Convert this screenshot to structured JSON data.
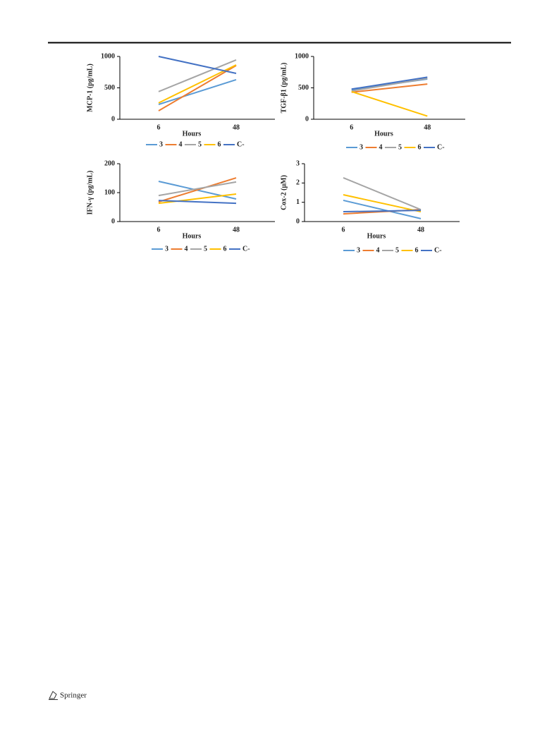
{
  "chart_data": [
    {
      "type": "line",
      "y_label": "MCP-1 (pg/mL)",
      "x_label": "Hours",
      "categories": [
        "6",
        "48"
      ],
      "ylim": [
        0,
        1000
      ],
      "yticks": [
        0,
        500,
        1000
      ],
      "series": [
        {
          "name": "3",
          "color": "#5b9bd5",
          "values": [
            236,
            630
          ]
        },
        {
          "name": "4",
          "color": "#ed7d31",
          "values": [
            135,
            855
          ]
        },
        {
          "name": "5",
          "color": "#a5a5a5",
          "values": [
            440,
            945
          ]
        },
        {
          "name": "6",
          "color": "#ffc000",
          "values": [
            260,
            865
          ]
        },
        {
          "name": "C-",
          "color": "#4472c4",
          "values": [
            1000,
            730
          ]
        }
      ]
    },
    {
      "type": "line",
      "y_label": "TGF-β1 (pg/mL)",
      "x_label": "Hours",
      "categories": [
        "6",
        "48"
      ],
      "ylim": [
        0,
        1000
      ],
      "yticks": [
        0,
        500,
        1000
      ],
      "series": [
        {
          "name": "3",
          "color": "#5b9bd5",
          "values": [
            470,
            640
          ]
        },
        {
          "name": "4",
          "color": "#ed7d31",
          "values": [
            430,
            560
          ]
        },
        {
          "name": "5",
          "color": "#a5a5a5",
          "values": [
            450,
            650
          ]
        },
        {
          "name": "6",
          "color": "#ffc000",
          "values": [
            440,
            50
          ]
        },
        {
          "name": "C-",
          "color": "#4472c4",
          "values": [
            480,
            670
          ]
        }
      ]
    },
    {
      "type": "line",
      "y_label": "IFN-γ (pg/mL)",
      "x_label": "Hours",
      "categories": [
        "6",
        "48"
      ],
      "ylim": [
        0,
        200
      ],
      "yticks": [
        0,
        100,
        200
      ],
      "series": [
        {
          "name": "3",
          "color": "#5b9bd5",
          "values": [
            139,
            78
          ]
        },
        {
          "name": "4",
          "color": "#ed7d31",
          "values": [
            68,
            151
          ]
        },
        {
          "name": "5",
          "color": "#a5a5a5",
          "values": [
            90,
            137
          ]
        },
        {
          "name": "6",
          "color": "#ffc000",
          "values": [
            63,
            95
          ]
        },
        {
          "name": "C-",
          "color": "#4472c4",
          "values": [
            73,
            63
          ]
        }
      ]
    },
    {
      "type": "line",
      "y_label": "Cox-2 (μM)",
      "x_label": "Hours",
      "categories": [
        "6",
        "48"
      ],
      "ylim": [
        0,
        3
      ],
      "yticks": [
        0,
        1,
        2,
        3
      ],
      "series": [
        {
          "name": "3",
          "color": "#5b9bd5",
          "values": [
            1.1,
            0.15
          ]
        },
        {
          "name": "4",
          "color": "#ed7d31",
          "values": [
            0.4,
            0.62
          ]
        },
        {
          "name": "5",
          "color": "#a5a5a5",
          "values": [
            2.27,
            0.62
          ]
        },
        {
          "name": "6",
          "color": "#ffc000",
          "values": [
            1.39,
            0.51
          ]
        },
        {
          "name": "C-",
          "color": "#4472c4",
          "values": [
            0.51,
            0.58
          ]
        }
      ]
    }
  ],
  "footer": {
    "publisher": "Springer"
  }
}
